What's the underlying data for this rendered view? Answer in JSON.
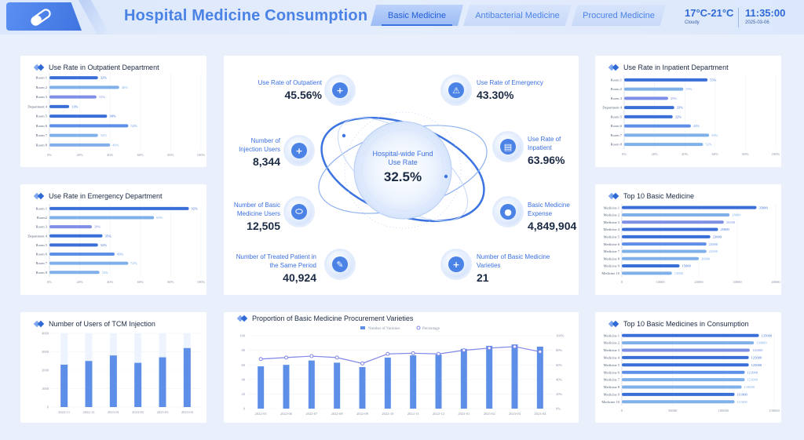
{
  "header": {
    "title": "Hospital Medicine Consumption",
    "tabs": [
      {
        "label": "Basic Medicine",
        "active": true
      },
      {
        "label": "Antibacterial Medicine",
        "active": false
      },
      {
        "label": "Procured Medicine",
        "active": false
      }
    ],
    "weather": {
      "temp": "17°C-21°C",
      "condition": "Cloudy"
    },
    "clock": {
      "time": "11:35:00",
      "date": "2025-03-06"
    }
  },
  "colors": {
    "accent": "#4a82e6",
    "bar_dark": "#3a6fd8",
    "bar_light": "#7fb0ea",
    "bar_mid": "#5e8fe8",
    "bar_violet": "#7e8fe6",
    "line": "#7f86e6"
  },
  "center": {
    "core_label": "Hospital-wide Fund Use Rate",
    "core_value": "32.5%",
    "metrics": [
      {
        "key": "outpatient",
        "label": "Use Rate of Outpatient",
        "value": "45.56%",
        "icon": "plus-cross-icon"
      },
      {
        "key": "emergency",
        "label": "Use Rate of Emergency",
        "value": "43.30%",
        "icon": "siren-icon"
      },
      {
        "key": "injection",
        "label": "Number of Injection Users",
        "value": "8,344",
        "icon": "medicine-bag-icon"
      },
      {
        "key": "inpatient",
        "label": "Use Rate of Inpatient",
        "value": "63.96%",
        "icon": "hospital-bed-icon"
      },
      {
        "key": "basic_users",
        "label": "Number of Basic Medicine Users",
        "value": "12,505",
        "icon": "capsule-icon"
      },
      {
        "key": "expense",
        "label": "Basic Medicine Expense",
        "value": "4,849,904",
        "icon": "pills-icon"
      },
      {
        "key": "treated",
        "label": "Number of Treated Patient in the Same Period",
        "value": "40,924",
        "icon": "syringe-icon"
      },
      {
        "key": "varieties",
        "label": "Number of Basic Medicine Varieties",
        "value": "21",
        "icon": "medicine-bottle-icon"
      }
    ]
  },
  "chart_data": [
    {
      "id": "outpatient",
      "type": "bar",
      "orientation": "horizontal",
      "title": "Use Rate in Outpatient Department",
      "categories": [
        "Room 1",
        "Room 2",
        "Room 3",
        "Department 4",
        "Room 5",
        "Room 6",
        "Room 7",
        "Room 8"
      ],
      "values": [
        32,
        46,
        31,
        13,
        38,
        52,
        32,
        40
      ],
      "data_labels": [
        "32%",
        "46%",
        "31%",
        "13%",
        "38%",
        "52%",
        "32%",
        "40%"
      ],
      "ticks": [
        "0%",
        "20%",
        "40%",
        "60%",
        "80%",
        "100%"
      ],
      "xlim": [
        0,
        100
      ]
    },
    {
      "id": "emergency",
      "type": "bar",
      "orientation": "horizontal",
      "title": "Use Rate in Emergency Department",
      "categories": [
        "Room 1",
        "Room2",
        "Room 3",
        "Department 4",
        "Room 5",
        "Room 6",
        "Room 7",
        "Room 8"
      ],
      "values": [
        92,
        69,
        28,
        35,
        32,
        43,
        52,
        33
      ],
      "data_labels": [
        "92%",
        "69%",
        "28%",
        "35%",
        "32%",
        "43%",
        "52%",
        "33%"
      ],
      "ticks": [
        "0%",
        "20%",
        "40%",
        "60%",
        "80%",
        "100%"
      ],
      "xlim": [
        0,
        100
      ]
    },
    {
      "id": "inpatient",
      "type": "bar",
      "orientation": "horizontal",
      "title": "Use Rate in Inpatient Department",
      "categories": [
        "Room 1",
        "Room 2",
        "Room 3",
        "Department 4",
        "Room 5",
        "Room 6",
        "Room 7",
        "Room 8"
      ],
      "values": [
        55,
        39,
        29,
        33,
        32,
        44,
        56,
        52
      ],
      "data_labels": [
        "55%",
        "39%",
        "29%",
        "33%",
        "32%",
        "44%",
        "56%",
        "52%"
      ],
      "ticks": [
        "0%",
        "20%",
        "40%",
        "60%",
        "80%",
        "100%"
      ],
      "xlim": [
        0,
        100
      ]
    },
    {
      "id": "top10",
      "type": "bar",
      "orientation": "horizontal",
      "title": "Top 10 Basic Medicine",
      "categories": [
        "Medicine 1",
        "Medicine 2",
        "Medicine 3",
        "Medicine 4",
        "Medicine 5",
        "Medicine 6",
        "Medicine 7",
        "Medicine 8",
        "Medicine 9",
        "Medicine 10"
      ],
      "values": [
        35000,
        28000,
        26500,
        25000,
        23000,
        22000,
        22000,
        20000,
        15000,
        13000
      ],
      "data_labels": [
        "35000",
        "28000",
        "26500",
        "25000",
        "23000",
        "22000",
        "22000",
        "20000",
        "15000",
        "13000"
      ],
      "ticks": [
        "0",
        "10000",
        "20000",
        "30000",
        "40000"
      ],
      "xlim": [
        0,
        40000
      ]
    },
    {
      "id": "consumption",
      "type": "bar",
      "orientation": "horizontal",
      "title": "Top 10 Basic Medicines in Consumption",
      "categories": [
        "Medicine 1",
        "Medicine 2",
        "Medicine 3",
        "Medicine 4",
        "Medicine 5",
        "Medicine 6",
        "Medicine 7",
        "Medicine 8",
        "Medicine 9",
        "Medicine 10"
      ],
      "values": [
        135000,
        130000,
        126000,
        125000,
        125000,
        121000,
        121000,
        118000,
        111000,
        111000
      ],
      "data_labels": [
        "135000",
        "130000",
        "126000",
        "125000",
        "125000",
        "121000",
        "121000",
        "118000",
        "111000",
        "111000"
      ],
      "ticks": [
        "0",
        "50000",
        "100000",
        "150000"
      ],
      "xlim": [
        0,
        150000
      ]
    },
    {
      "id": "tcm",
      "type": "bar",
      "title": "Number of Users of TCM Injection",
      "categories": [
        "2022-11",
        "2022-12",
        "2023-01",
        "2023-02",
        "2023-03",
        "2023-04"
      ],
      "values": [
        2300,
        2500,
        2800,
        2400,
        2700,
        3200
      ],
      "ticks": [
        "0",
        "1000",
        "2000",
        "3000",
        "4000"
      ],
      "ylim": [
        0,
        4000
      ]
    },
    {
      "id": "procurement",
      "type": "bar",
      "title": "Proportion of Basic Medicine Procurement Varieties",
      "categories": [
        "2022-05",
        "2022-06",
        "2022-07",
        "2022-08",
        "2022-09",
        "2022-10",
        "2022-11",
        "2022-12",
        "2023-01",
        "2023-02",
        "2023-03",
        "2023-04"
      ],
      "legend": [
        "Number of Varieties",
        "Percentage"
      ],
      "series": [
        {
          "name": "Number of Varieties",
          "type": "bar",
          "values": [
            58,
            60,
            66,
            63,
            57,
            70,
            73,
            74,
            82,
            86,
            88,
            85
          ]
        },
        {
          "name": "Percentage",
          "type": "line",
          "values": [
            68,
            70,
            72,
            70,
            62,
            75,
            76,
            75,
            80,
            83,
            85,
            78
          ]
        }
      ],
      "y_left_ticks": [
        "0",
        "20",
        "40",
        "60",
        "80",
        "100"
      ],
      "y_right_ticks": [
        "0%",
        "20%",
        "40%",
        "60%",
        "80%",
        "100%"
      ],
      "ylim": [
        0,
        100
      ]
    }
  ]
}
